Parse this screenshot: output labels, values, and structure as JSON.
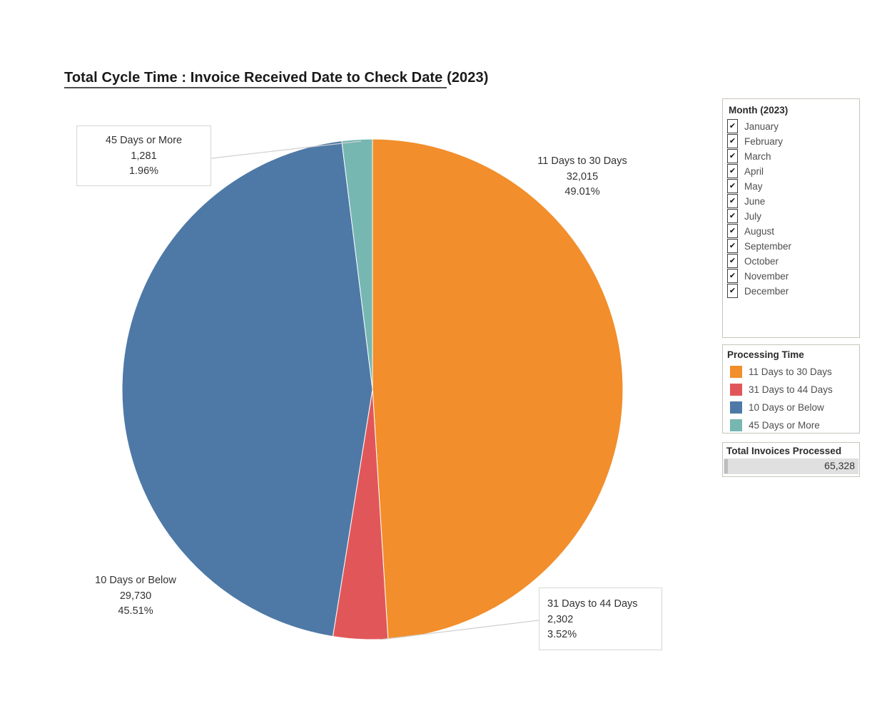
{
  "title": {
    "main": "Total Cycle Time : Invoice Received Date to Check Date ",
    "suffix": "(2023)"
  },
  "chart_data": {
    "type": "pie",
    "title": "Total Cycle Time : Invoice Received Date to Check Date (2023)",
    "start_angle_deg_clockwise_from_top": 0,
    "slices": [
      {
        "label": "11 Days to 30 Days",
        "value": 32015,
        "value_fmt": "32,015",
        "pct": 49.01,
        "pct_fmt": "49.01%",
        "color": "#F28E2B"
      },
      {
        "label": "31 Days to 44 Days",
        "value": 2302,
        "value_fmt": "2,302",
        "pct": 3.52,
        "pct_fmt": "3.52%",
        "color": "#E15759"
      },
      {
        "label": "10 Days or Below",
        "value": 29730,
        "value_fmt": "29,730",
        "pct": 45.51,
        "pct_fmt": "45.51%",
        "color": "#4E79A7"
      },
      {
        "label": "45 Days or More",
        "value": 1281,
        "value_fmt": "1,281",
        "pct": 1.96,
        "pct_fmt": "1.96%",
        "color": "#76B7B2"
      }
    ],
    "total": 65328,
    "legend_title": "Processing Time",
    "legend_position": "right"
  },
  "filters": {
    "month": {
      "title": "Month (2023)",
      "items": [
        {
          "label": "January",
          "checked": true
        },
        {
          "label": "February",
          "checked": true
        },
        {
          "label": "March",
          "checked": true
        },
        {
          "label": "April",
          "checked": true
        },
        {
          "label": "May",
          "checked": true
        },
        {
          "label": "June",
          "checked": true
        },
        {
          "label": "July",
          "checked": true
        },
        {
          "label": "August",
          "checked": true
        },
        {
          "label": "September",
          "checked": true
        },
        {
          "label": "October",
          "checked": true
        },
        {
          "label": "November",
          "checked": true
        },
        {
          "label": "December",
          "checked": true
        }
      ]
    }
  },
  "legend": {
    "title": "Processing Time"
  },
  "total_panel": {
    "title": "Total Invoices Processed",
    "value_fmt": "65,328"
  },
  "ui": {
    "check_glyph": "✔"
  }
}
